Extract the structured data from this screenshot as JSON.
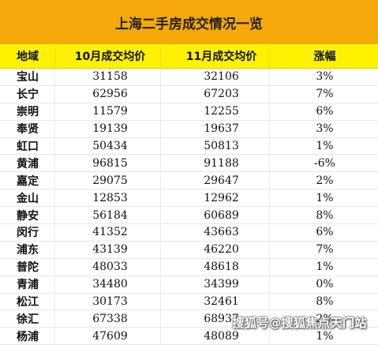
{
  "title": "上海二手房成交情况一览",
  "headers": {
    "district": "地域",
    "oct": "10月成交均价",
    "nov": "11月成交均价",
    "change": "涨幅"
  },
  "rows": [
    {
      "district": "宝山",
      "oct": "31158",
      "nov": "32106",
      "change": "3%"
    },
    {
      "district": "长宁",
      "oct": "62956",
      "nov": "67203",
      "change": "7%"
    },
    {
      "district": "崇明",
      "oct": "11579",
      "nov": "12255",
      "change": "6%"
    },
    {
      "district": "奉贤",
      "oct": "19139",
      "nov": "19637",
      "change": "3%"
    },
    {
      "district": "虹口",
      "oct": "50434",
      "nov": "50813",
      "change": "1%"
    },
    {
      "district": "黄浦",
      "oct": "96815",
      "nov": "91188",
      "change": "-6%"
    },
    {
      "district": "嘉定",
      "oct": "29075",
      "nov": "29647",
      "change": "2%"
    },
    {
      "district": "金山",
      "oct": "12853",
      "nov": "12962",
      "change": "1%"
    },
    {
      "district": "静安",
      "oct": "56184",
      "nov": "60689",
      "change": "8%"
    },
    {
      "district": "闵行",
      "oct": "41352",
      "nov": "43663",
      "change": "6%"
    },
    {
      "district": "浦东",
      "oct": "43139",
      "nov": "46220",
      "change": "7%"
    },
    {
      "district": "普陀",
      "oct": "48033",
      "nov": "48618",
      "change": "1%"
    },
    {
      "district": "青浦",
      "oct": "34480",
      "nov": "34399",
      "change": "0%"
    },
    {
      "district": "松江",
      "oct": "30173",
      "nov": "32461",
      "change": "8%"
    },
    {
      "district": "徐汇",
      "oct": "67338",
      "nov": "68937",
      "change": "2%"
    },
    {
      "district": "杨浦",
      "oct": "47609",
      "nov": "48089",
      "change": "1%"
    }
  ],
  "watermark": "搜狐号@搜狐焦点天门站",
  "colors": {
    "title_bg": "#f7a80a",
    "header_bg": "#fff200"
  }
}
